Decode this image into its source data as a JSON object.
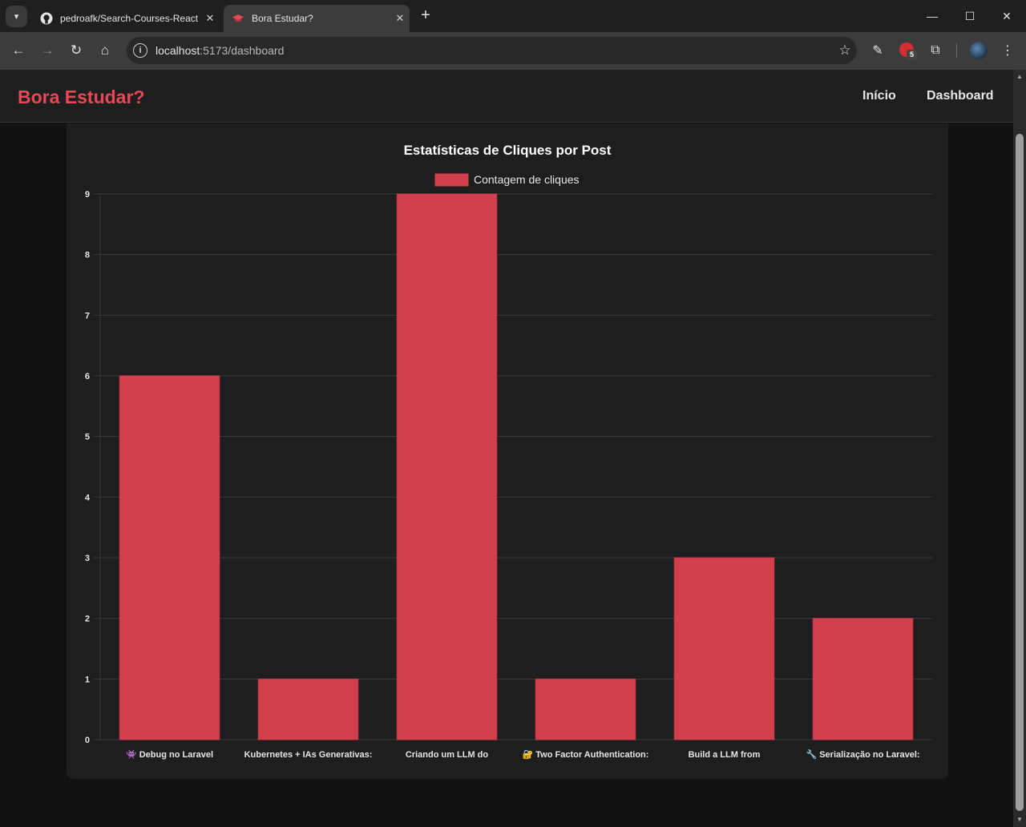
{
  "browser": {
    "tabs": [
      {
        "title": "pedroafk/Search-Courses-React",
        "icon": "github-icon"
      },
      {
        "title": "Bora Estudar?",
        "icon": "graduation-cap-icon"
      }
    ],
    "address": {
      "host": "localhost",
      "path": ":5173/dashboard"
    },
    "extension_badge": "5"
  },
  "header": {
    "brand": "Bora Estudar?",
    "nav": [
      "Início",
      "Dashboard"
    ]
  },
  "colors": {
    "brand": "#e74856",
    "bar": "#d2404e",
    "background": "#121212",
    "card": "#1e1e1f"
  },
  "chart_data": {
    "type": "bar",
    "title": "Estatísticas de Cliques por Post",
    "legend": "Contagem de cliques",
    "legend_position": "top",
    "categories": [
      "👾 Debug no Laravel",
      "Kubernetes + IAs Generativas:",
      "Criando um LLM do",
      "🔐 Two Factor Authentication:",
      "Build a LLM from",
      "🔧 Serialização no Laravel:"
    ],
    "values": [
      6,
      1,
      9,
      1,
      3,
      2
    ],
    "ylim": [
      0,
      9
    ],
    "yticks": [
      0,
      1,
      2,
      3,
      4,
      5,
      6,
      7,
      8,
      9
    ],
    "grid": true
  }
}
